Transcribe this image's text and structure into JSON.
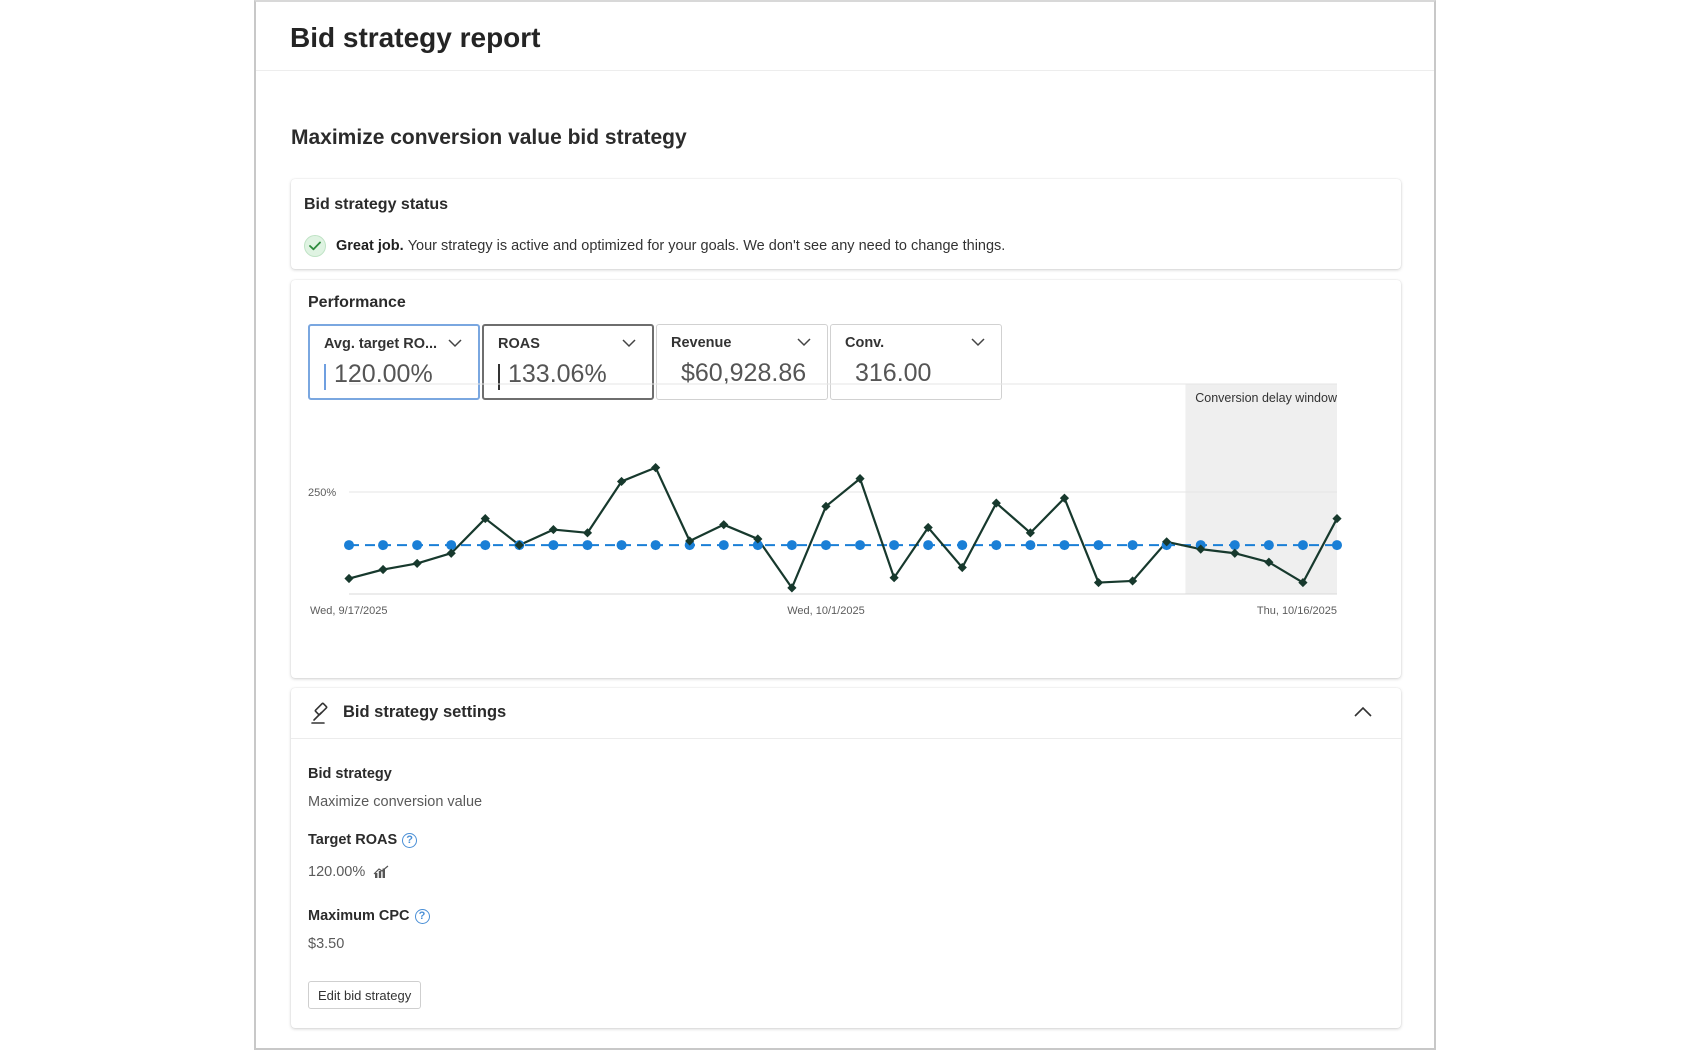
{
  "page": {
    "title": "Bid strategy report",
    "section_title": "Maximize conversion value bid strategy"
  },
  "status": {
    "title": "Bid strategy status",
    "icon": "check-circle-icon",
    "strong": "Great job.",
    "message": "Your strategy is active and optimized for your goals. We don't see any need to change things.",
    "colors": {
      "icon_bg": "#dff3e2",
      "icon_check": "#2e8b3e"
    }
  },
  "performance": {
    "title": "Performance",
    "metrics": [
      {
        "label": "Avg. target RO...",
        "value": "120.00%",
        "selected": "blue"
      },
      {
        "label": "ROAS",
        "value": "133.06%",
        "selected": "dark"
      },
      {
        "label": "Revenue",
        "value": "$60,928.86",
        "selected": ""
      },
      {
        "label": "Conv.",
        "value": "316.00",
        "selected": ""
      }
    ]
  },
  "chart_data": {
    "type": "line",
    "x": [
      "9/17/2025",
      "9/18/2025",
      "9/19/2025",
      "9/20/2025",
      "9/21/2025",
      "9/22/2025",
      "9/23/2025",
      "9/24/2025",
      "9/25/2025",
      "9/26/2025",
      "9/27/2025",
      "9/28/2025",
      "9/29/2025",
      "9/30/2025",
      "10/1/2025",
      "10/2/2025",
      "10/3/2025",
      "10/4/2025",
      "10/5/2025",
      "10/6/2025",
      "10/7/2025",
      "10/8/2025",
      "10/9/2025",
      "10/10/2025",
      "10/11/2025",
      "10/12/2025",
      "10/13/2025",
      "10/14/2025",
      "10/15/2025",
      "10/16/2025"
    ],
    "x_tick_labels": [
      "Wed, 9/17/2025",
      "Wed, 10/1/2025",
      "Thu, 10/16/2025"
    ],
    "x_tick_indices": [
      0,
      14,
      29
    ],
    "y_tick_labels": [
      "250%"
    ],
    "y_tick_values": [
      250
    ],
    "ylim": [
      0,
      515
    ],
    "series": [
      {
        "values": [
          120,
          120,
          120,
          120,
          120,
          120,
          120,
          120,
          120,
          120,
          120,
          120,
          120,
          120,
          120,
          120,
          120,
          120,
          120,
          120,
          120,
          120,
          120,
          120,
          120,
          120,
          120,
          120,
          120,
          120
        ],
        "color": "#1a7fd6",
        "marker": "circle",
        "dashed": true
      },
      {
        "values": [
          38,
          60,
          75,
          100,
          185,
          120,
          158,
          150,
          276,
          310,
          130,
          170,
          135,
          15,
          215,
          283,
          40,
          163,
          65,
          223,
          150,
          235,
          28,
          32,
          128,
          110,
          100,
          78,
          28,
          185
        ],
        "color": "#17392d",
        "marker": "diamond",
        "dashed": false
      }
    ],
    "shaded_region": {
      "label": "Conversion delay window",
      "start_index": 25,
      "end_index": 29
    },
    "grid": true
  },
  "settings": {
    "title": "Bid strategy settings",
    "icon": "gavel-icon",
    "bid_strategy_label": "Bid strategy",
    "bid_strategy_value": "Maximize conversion value",
    "target_roas_label": "Target ROAS",
    "target_roas_value": "120.00%",
    "max_cpc_label": "Maximum CPC",
    "max_cpc_value": "$3.50",
    "edit_button": "Edit bid strategy"
  }
}
